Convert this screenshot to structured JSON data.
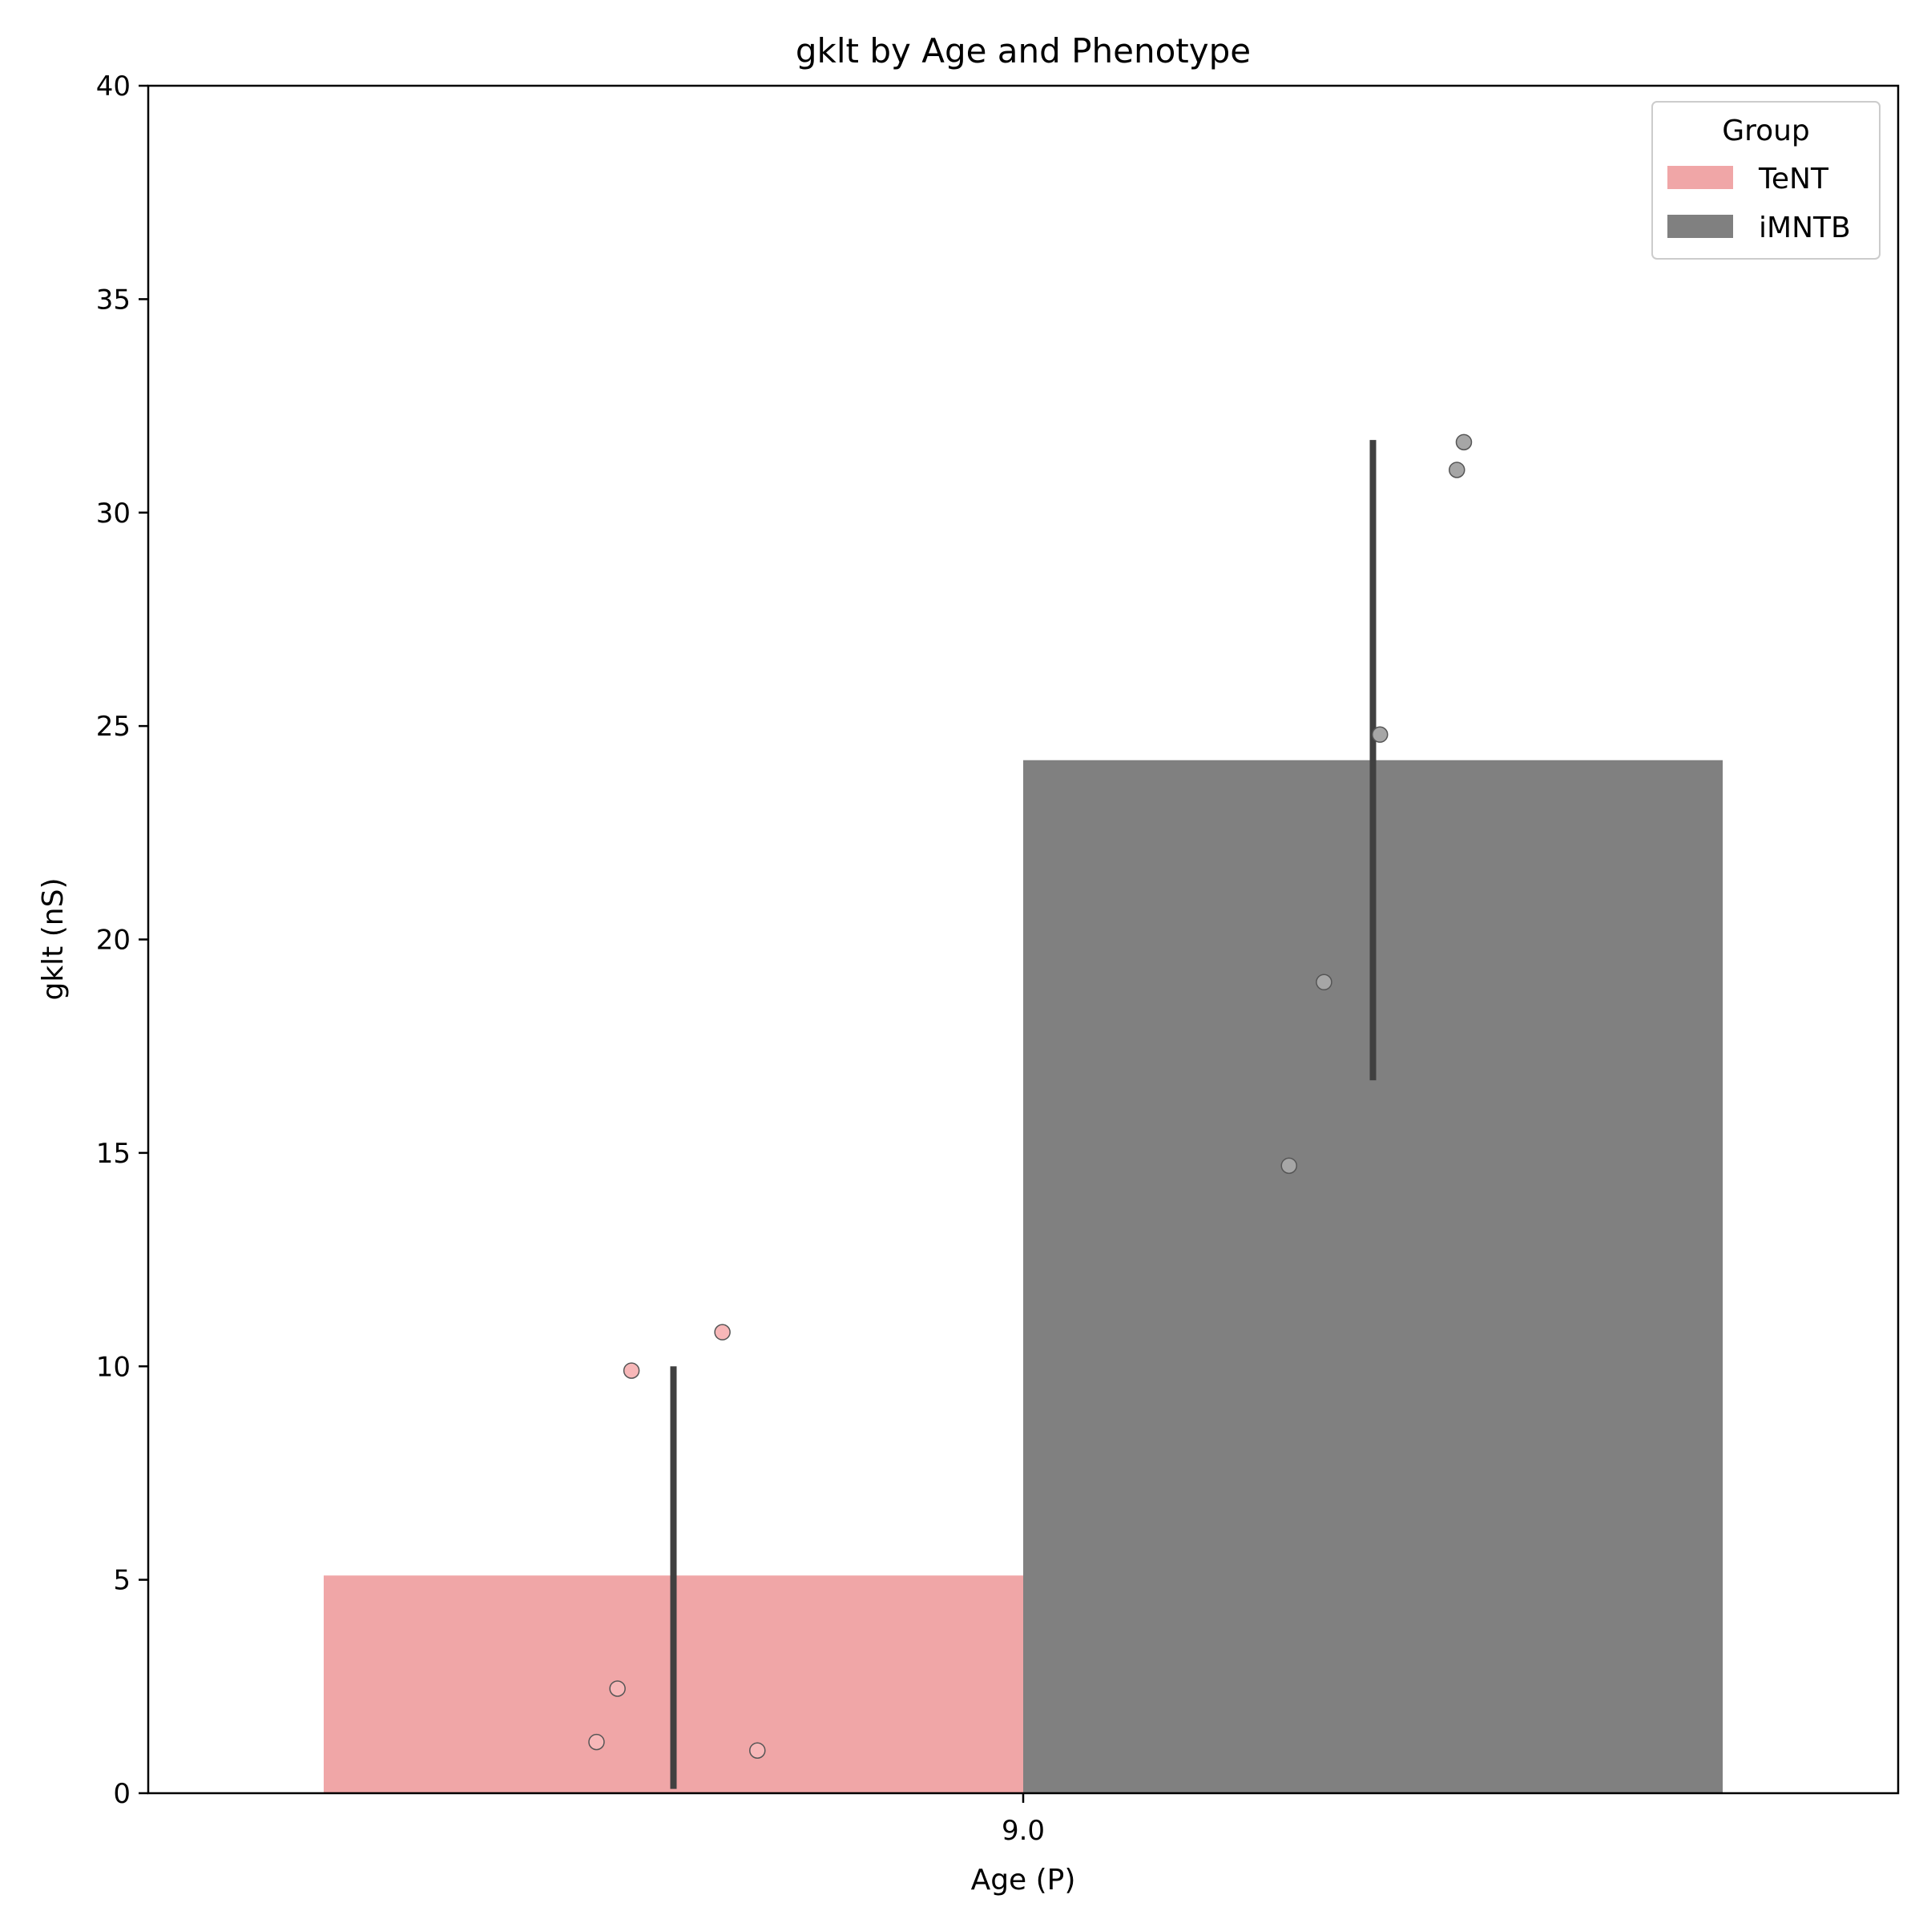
{
  "chart_data": {
    "type": "bar",
    "title": "gklt by Age and Phenotype",
    "xlabel": "Age (P)",
    "ylabel": "gklt (nS)",
    "categories": [
      "9.0"
    ],
    "ylim": [
      0,
      40
    ],
    "yticks": [
      0,
      5,
      10,
      15,
      20,
      25,
      30,
      35,
      40
    ],
    "grid": false,
    "legend": {
      "title": "Group",
      "placement": "top-right",
      "entries": [
        "TeNT",
        "iMNTB"
      ]
    },
    "series": [
      {
        "name": "TeNT",
        "color": "#f0a6a7",
        "point_color": "#f7b7b8",
        "values": [
          5.1
        ],
        "ci": [
          [
            0.1,
            10.0
          ]
        ],
        "points": [
          9.9,
          10.8,
          2.45,
          1.2,
          1.0
        ]
      },
      {
        "name": "iMNTB",
        "color": "#808080",
        "point_color": "#a6a6a6",
        "values": [
          24.2
        ],
        "ci": [
          [
            16.7,
            31.7
          ]
        ],
        "points": [
          14.7,
          19.0,
          24.8,
          31.0,
          31.65
        ]
      }
    ]
  }
}
